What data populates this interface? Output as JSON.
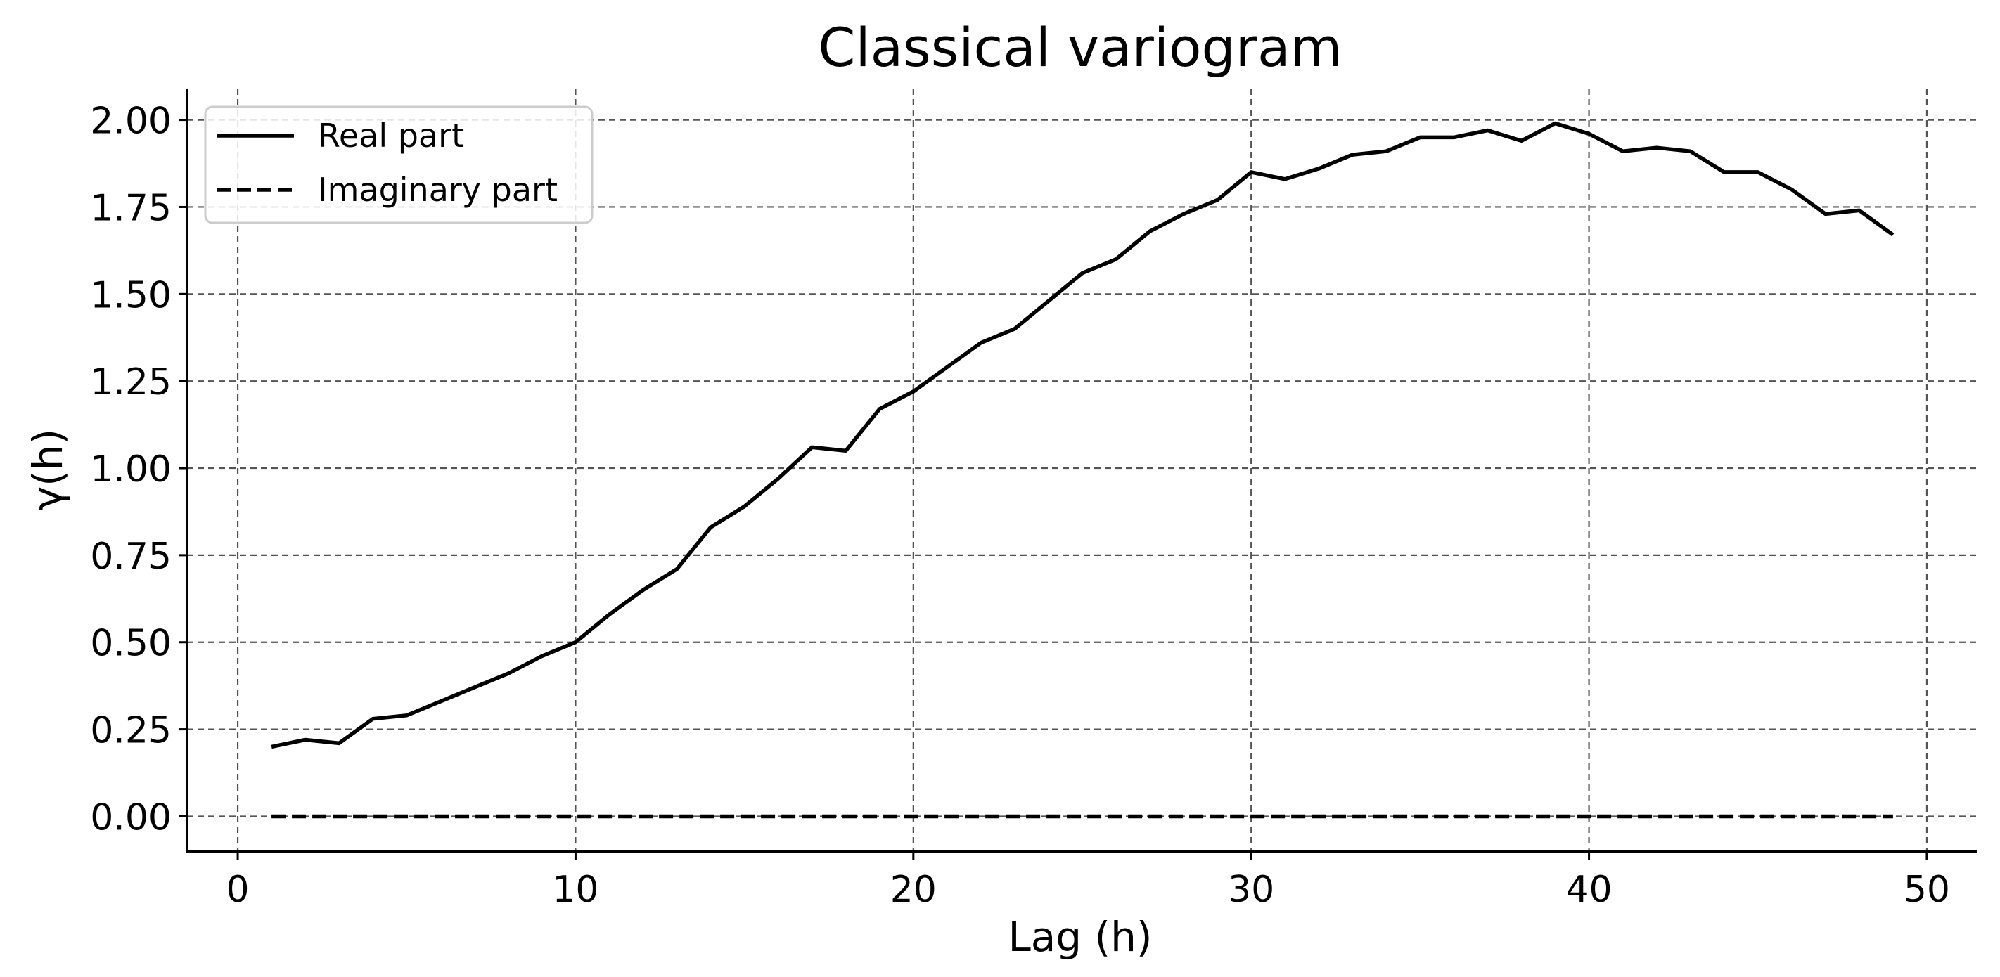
{
  "chart_data": {
    "type": "line",
    "title": "Classical variogram",
    "xlabel": "Lag (h)",
    "ylabel": "γ(h)",
    "xlim": [
      -1.5,
      51.5
    ],
    "ylim": [
      -0.1,
      2.09
    ],
    "xticks": [
      0,
      10,
      20,
      30,
      40,
      50
    ],
    "xtick_labels": [
      "0",
      "10",
      "20",
      "30",
      "40",
      "50"
    ],
    "yticks": [
      0,
      0.25,
      0.5,
      0.75,
      1.0,
      1.25,
      1.5,
      1.75,
      2.0
    ],
    "ytick_labels": [
      "0.00",
      "0.25",
      "0.50",
      "0.75",
      "1.00",
      "1.25",
      "1.50",
      "1.75",
      "2.00"
    ],
    "grid": true,
    "legend_position": "top-left",
    "x": [
      1,
      2,
      3,
      4,
      5,
      6,
      7,
      8,
      9,
      10,
      11,
      12,
      13,
      14,
      15,
      16,
      17,
      18,
      19,
      20,
      21,
      22,
      23,
      24,
      25,
      26,
      27,
      28,
      29,
      30,
      31,
      32,
      33,
      34,
      35,
      36,
      37,
      38,
      39,
      40,
      41,
      42,
      43,
      44,
      45,
      46,
      47,
      48,
      49
    ],
    "series": [
      {
        "name": "Real part",
        "style": "solid",
        "color": "#000000",
        "values": [
          0.2,
          0.22,
          0.21,
          0.28,
          0.29,
          0.33,
          0.37,
          0.41,
          0.46,
          0.5,
          0.58,
          0.65,
          0.71,
          0.83,
          0.89,
          0.97,
          1.06,
          1.05,
          1.17,
          1.22,
          1.29,
          1.36,
          1.4,
          1.48,
          1.56,
          1.6,
          1.68,
          1.73,
          1.77,
          1.85,
          1.83,
          1.86,
          1.9,
          1.91,
          1.95,
          1.95,
          1.97,
          1.94,
          1.99,
          1.96,
          1.91,
          1.92,
          1.91,
          1.85,
          1.85,
          1.8,
          1.73,
          1.74,
          1.67
        ]
      },
      {
        "name": "Imaginary part",
        "style": "dashed",
        "color": "#000000",
        "values": [
          0,
          0,
          0,
          0,
          0,
          0,
          0,
          0,
          0,
          0,
          0,
          0,
          0,
          0,
          0,
          0,
          0,
          0,
          0,
          0,
          0,
          0,
          0,
          0,
          0,
          0,
          0,
          0,
          0,
          0,
          0,
          0,
          0,
          0,
          0,
          0,
          0,
          0,
          0,
          0,
          0,
          0,
          0,
          0,
          0,
          0,
          0,
          0,
          0
        ]
      }
    ]
  }
}
